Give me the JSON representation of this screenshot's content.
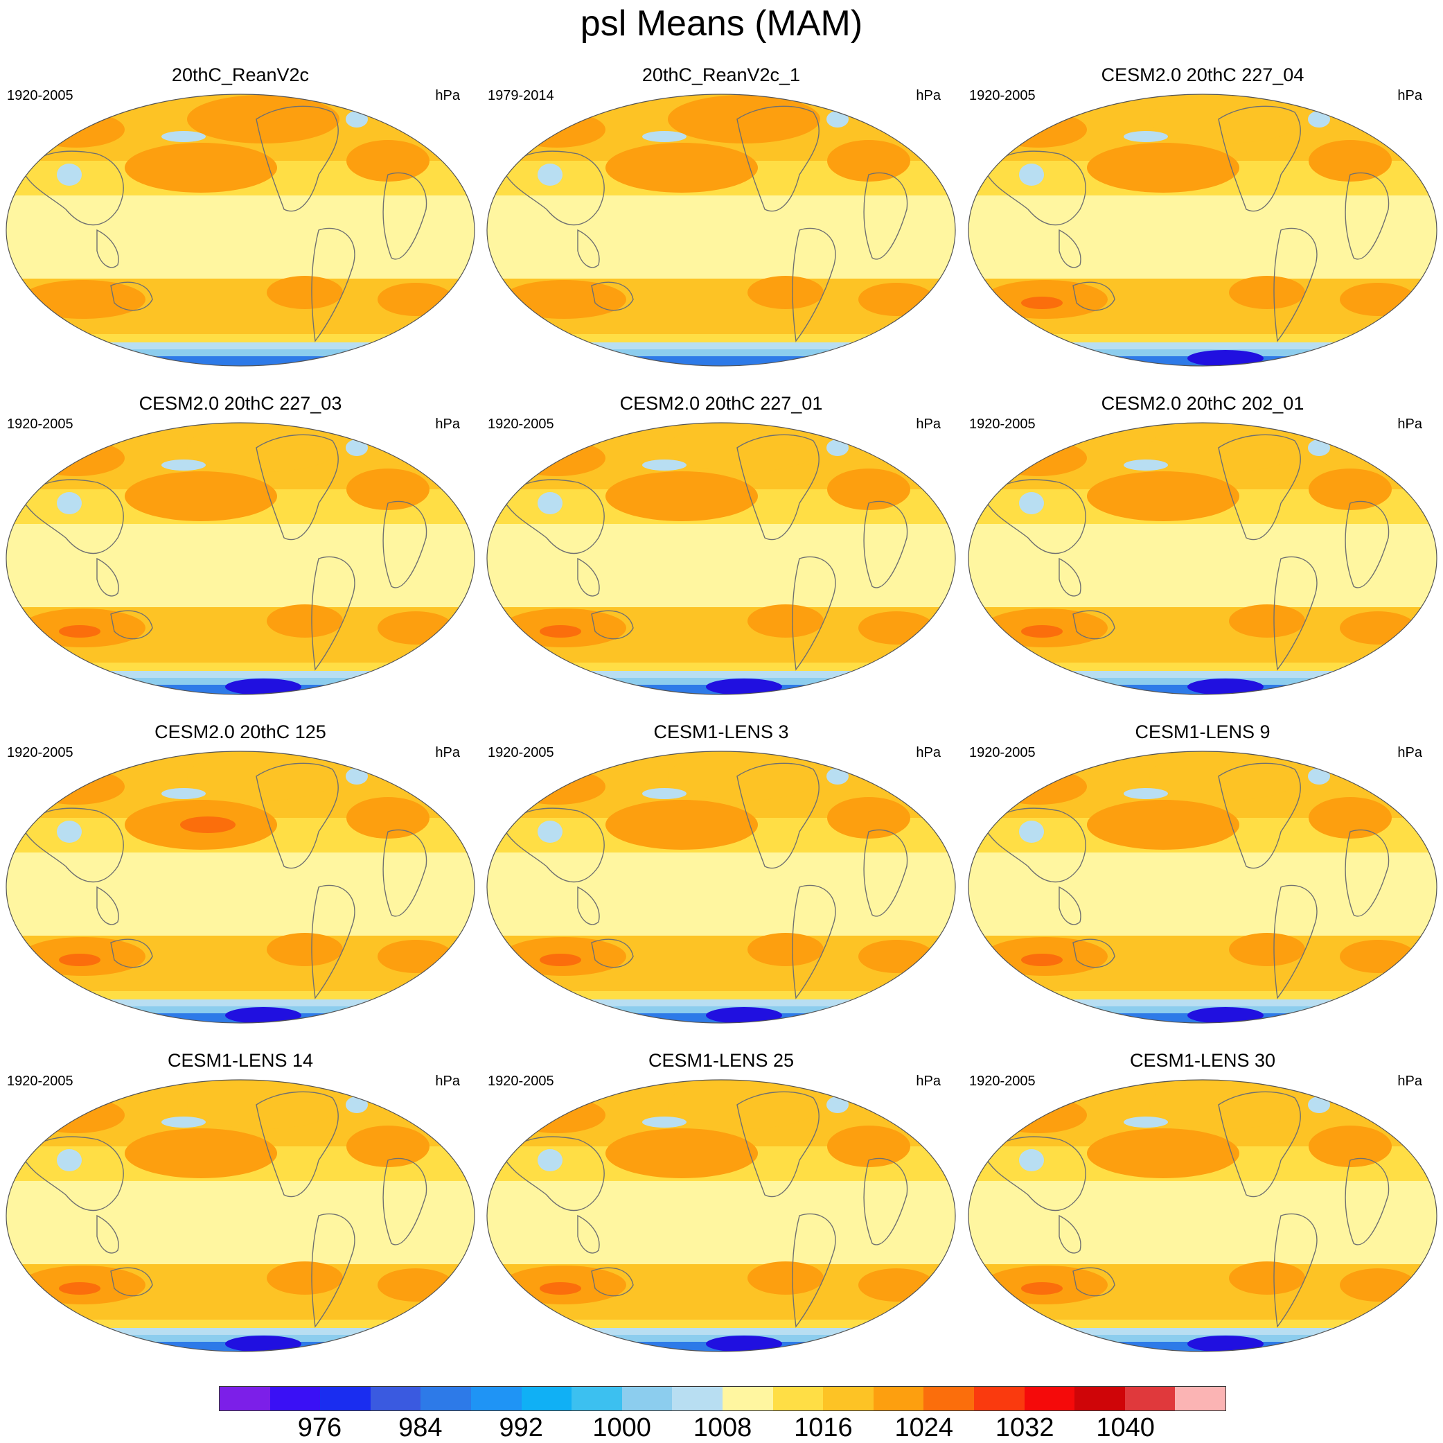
{
  "title": "psl Means (MAM)",
  "panels": [
    {
      "name": "20thC_ReanV2c",
      "years": "1920-2005",
      "units": "hPa"
    },
    {
      "name": "20thC_ReanV2c_1",
      "years": "1979-2014",
      "units": "hPa"
    },
    {
      "name": "CESM2.0 20thC 227_04",
      "years": "1920-2005",
      "units": "hPa"
    },
    {
      "name": "CESM2.0 20thC 227_03",
      "years": "1920-2005",
      "units": "hPa"
    },
    {
      "name": "CESM2.0 20thC 227_01",
      "years": "1920-2005",
      "units": "hPa"
    },
    {
      "name": "CESM2.0 20thC 202_01",
      "years": "1920-2005",
      "units": "hPa"
    },
    {
      "name": "CESM2.0 20thC 125",
      "years": "1920-2005",
      "units": "hPa"
    },
    {
      "name": "CESM1-LENS 3",
      "years": "1920-2005",
      "units": "hPa"
    },
    {
      "name": "CESM1-LENS 9",
      "years": "1920-2005",
      "units": "hPa"
    },
    {
      "name": "CESM1-LENS 14",
      "years": "1920-2005",
      "units": "hPa"
    },
    {
      "name": "CESM1-LENS 25",
      "years": "1920-2005",
      "units": "hPa"
    },
    {
      "name": "CESM1-LENS 30",
      "years": "1920-2005",
      "units": "hPa"
    }
  ],
  "colorbar": {
    "colors": [
      "#7c1fe8",
      "#3a10f5",
      "#1a2df0",
      "#3a5ae0",
      "#2d7ae8",
      "#1f94f5",
      "#10b0f5",
      "#3cc0f0",
      "#8ccdee",
      "#b8def2",
      "#fff6a0",
      "#ffde45",
      "#fdc325",
      "#fd9f0f",
      "#fb6e0c",
      "#fa3a0e",
      "#f50a0a",
      "#cf0508",
      "#e0393c",
      "#fbb4b4"
    ],
    "tick_labels": [
      "976",
      "984",
      "992",
      "1000",
      "1008",
      "1016",
      "1024",
      "1032",
      "1040"
    ]
  },
  "palette": {
    "low_blue": "#1a2df0",
    "mid_blue": "#2d7ae8",
    "light_blue": "#8ccdee",
    "pale_blue": "#b8def2",
    "pale_yellow": "#fff6a0",
    "yellow": "#ffde45",
    "gold": "#fdc325",
    "orange": "#fd9f0f",
    "deep_orange": "#fb6e0c",
    "coastline": "#707070"
  }
}
